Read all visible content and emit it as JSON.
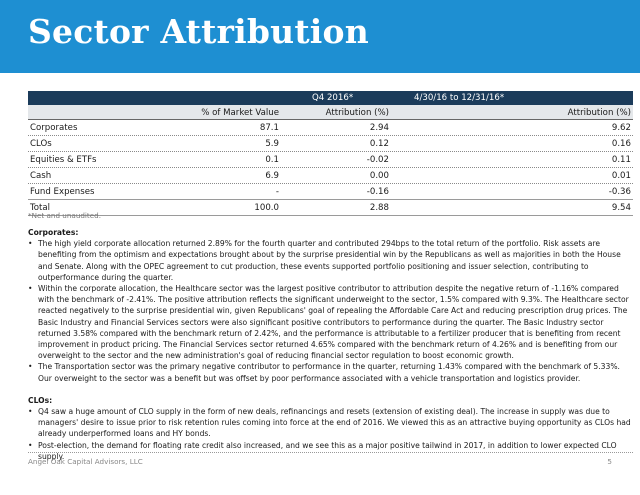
{
  "header": {
    "title": "Sector Attribution"
  },
  "table": {
    "band": {
      "col1": "Q4 2016*",
      "col3": "4/30/16 to 12/31/16*"
    },
    "subhead": {
      "col1": "% of Market Value",
      "col2": "Attribution (%)",
      "col3": "Attribution (%)"
    },
    "rows": [
      {
        "name": "Corporates",
        "market_value": "87.1",
        "q4": "2.94",
        "ytd": "9.62"
      },
      {
        "name": "CLOs",
        "market_value": "5.9",
        "q4": "0.12",
        "ytd": "0.16"
      },
      {
        "name": "Equities & ETFs",
        "market_value": "0.1",
        "q4": "-0.02",
        "ytd": "0.11"
      },
      {
        "name": "Cash",
        "market_value": "6.9",
        "q4": "0.00",
        "ytd": "0.01"
      },
      {
        "name": "Fund Expenses",
        "market_value": "-",
        "q4": "-0.16",
        "ytd": "-0.36"
      }
    ],
    "total": {
      "name": "Total",
      "market_value": "100.0",
      "q4": "2.88",
      "ytd": "9.54"
    },
    "note": "*Net and unaudited."
  },
  "sections": [
    {
      "title": "Corporates:",
      "bullets": [
        "The high yield corporate allocation returned 2.89% for the fourth quarter and contributed 294bps to the total return of the portfolio. Risk assets are benefiting from the optimism and expectations brought about by the surprise presidential win by the Republicans as well as majorities in both the House and Senate. Along with the OPEC agreement to cut production, these events supported portfolio positioning and issuer selection, contributing to outperformance during the quarter.",
        "Within the corporate allocation, the Healthcare sector was the largest positive contributor to attribution despite the negative return of -1.16% compared with the benchmark of -2.41%. The positive attribution reflects the significant underweight to the sector, 1.5% compared with 9.3%. The Healthcare sector reacted negatively to the surprise presidential win, given Republicans' goal of repealing the Affordable Care Act and reducing prescription drug prices. The Basic Industry and Financial Services sectors were also significant positive contributors to performance during the quarter.  The Basic Industry sector returned 3.58% compared with the benchmark return of 2.42%, and the performance is attributable to a fertilizer producer that is benefiting from recent improvement in product pricing.  The Financial Services sector returned 4.65% compared with the benchmark return of 4.26% and is benefiting from our overweight to the sector and the new administration's goal of reducing financial sector regulation to boost economic growth.",
        "The Transportation sector was the primary negative contributor to performance in the quarter, returning 1.43% compared with the benchmark of 5.33%. Our overweight to the sector was a benefit but was offset by poor performance associated with a vehicle transportation and logistics provider."
      ]
    },
    {
      "title": "CLOs:",
      "bullets": [
        "Q4 saw a huge amount of CLO supply in the form of new deals, refinancings and resets (extension of existing deal). The increase in supply was due to managers' desire to issue prior to risk retention rules coming into force at the end of 2016. We viewed this as an attractive buying opportunity as CLOs had already underperformed loans and HY bonds.",
        "Post-election, the demand for floating rate credit also increased, and we see this as a major positive tailwind in 2017, in addition to lower expected CLO supply."
      ]
    }
  ],
  "footer": {
    "company": "Angel Oak Capital Advisors, LLC",
    "page": "5"
  }
}
